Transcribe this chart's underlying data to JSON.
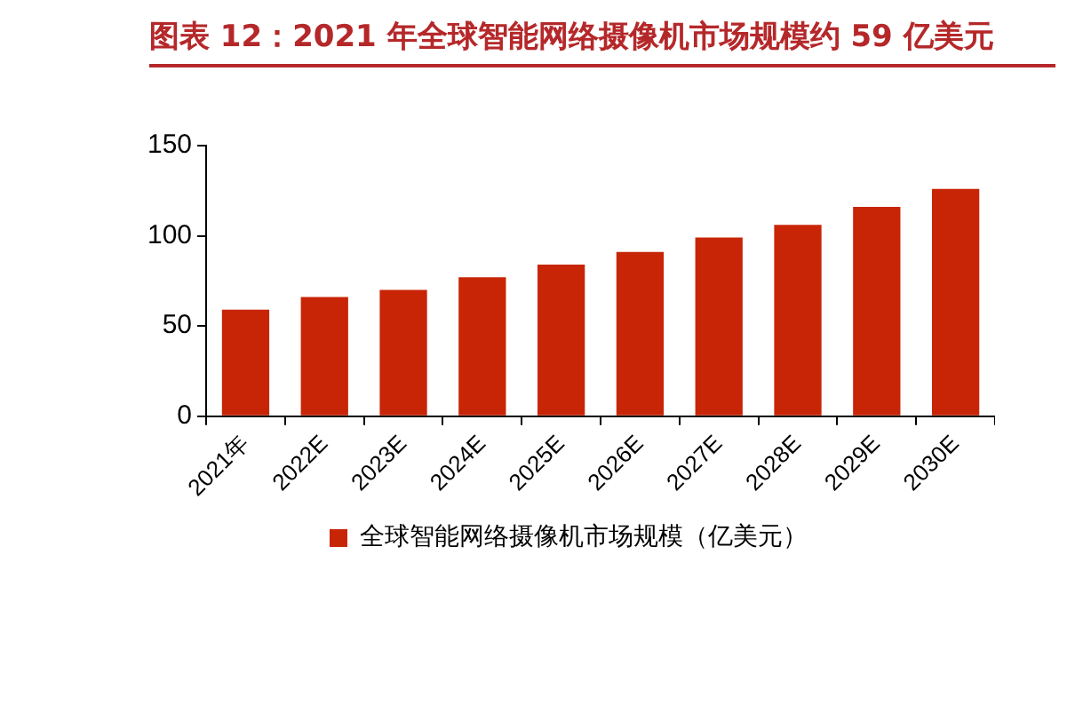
{
  "chart_data": {
    "type": "bar",
    "title": "图表 12：2021 年全球智能网络摄像机市场规模约 59 亿美元",
    "categories": [
      "2021年",
      "2022E",
      "2023E",
      "2024E",
      "2025E",
      "2026E",
      "2027E",
      "2028E",
      "2029E",
      "2030E"
    ],
    "series": [
      {
        "name": "全球智能网络摄像机市场规模（亿美元）",
        "color": "#c82506",
        "values": [
          59,
          66,
          70,
          77,
          84,
          91,
          99,
          106,
          116,
          126
        ]
      }
    ],
    "ylim": [
      0,
      150
    ],
    "yticks": [
      0,
      50,
      100,
      150
    ],
    "grid": false,
    "legend": "bottom"
  }
}
